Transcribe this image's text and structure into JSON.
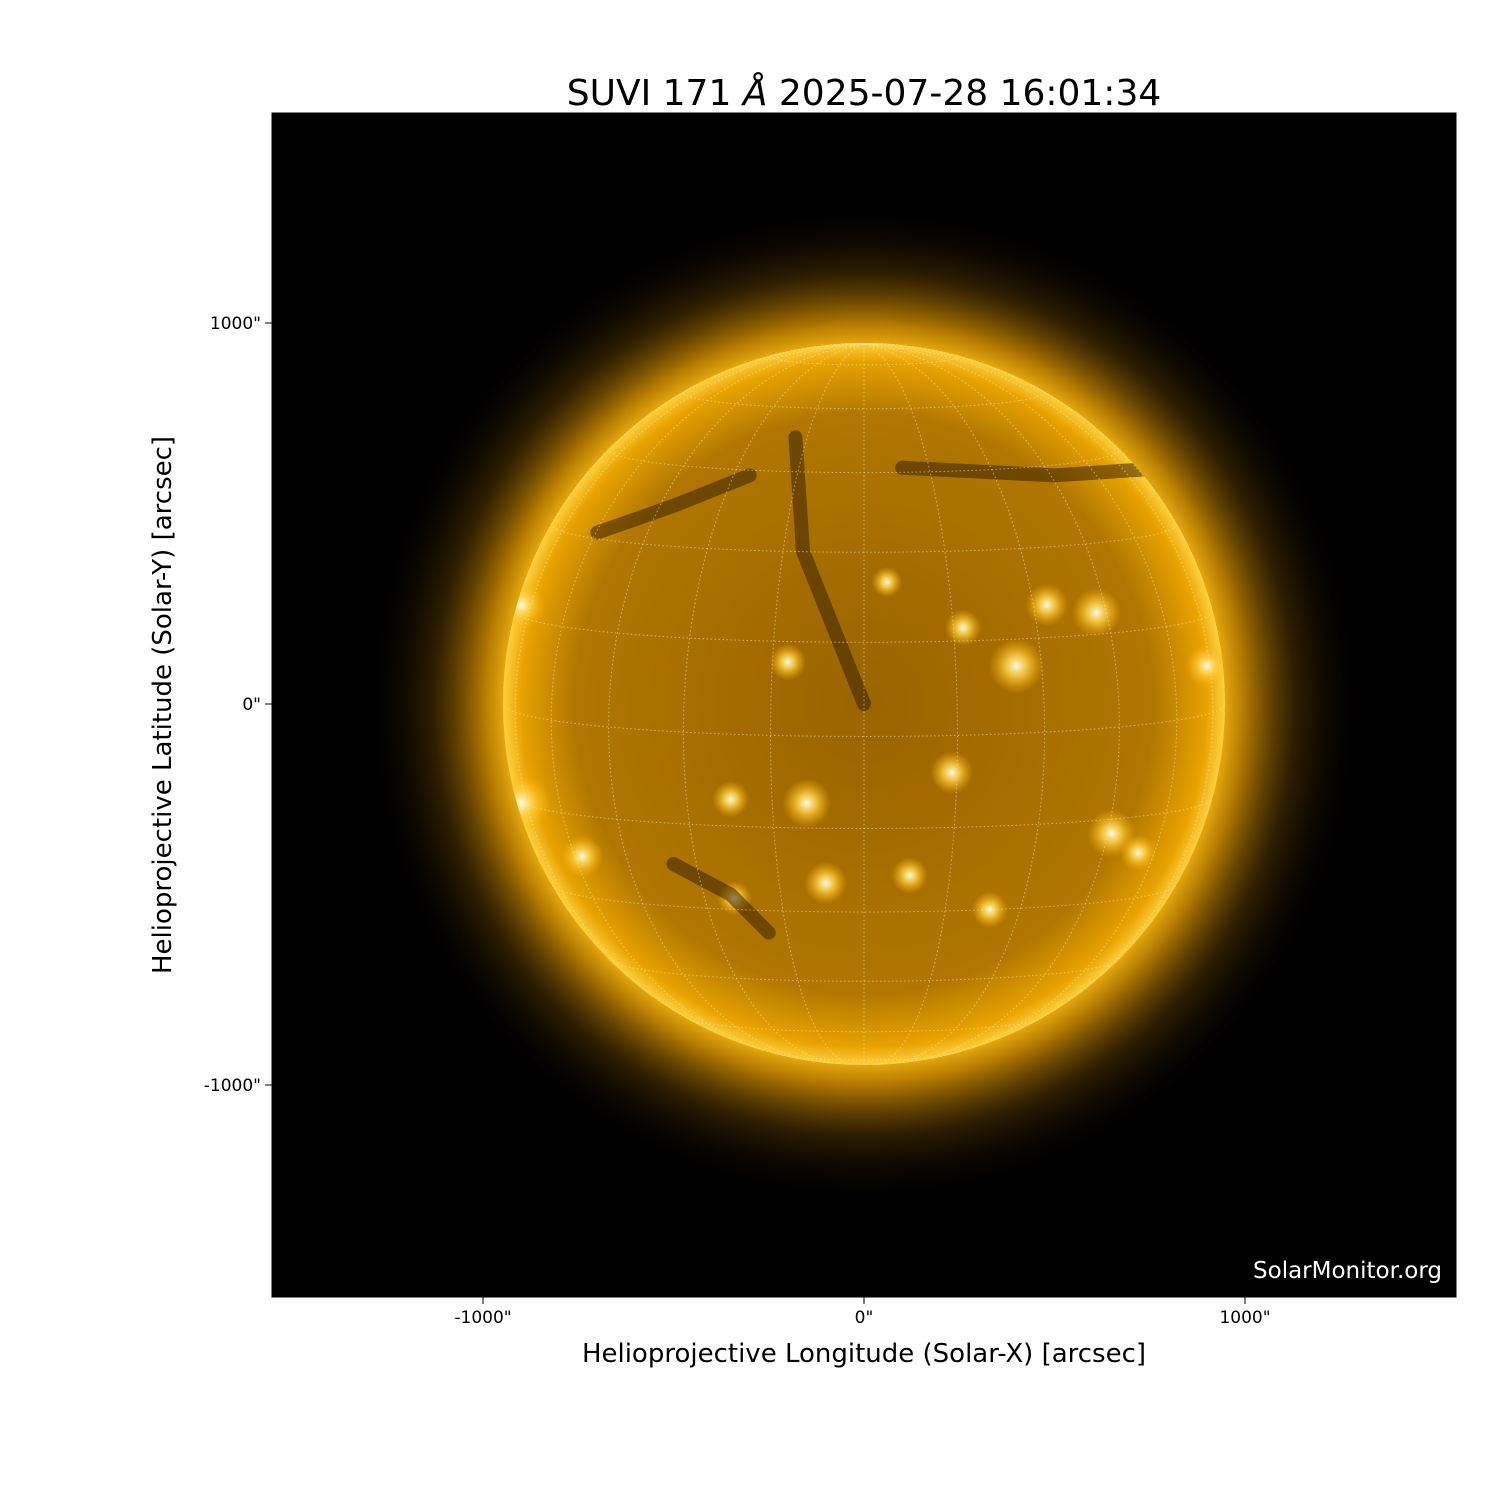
{
  "title": {
    "instrument": "SUVI 171",
    "unit": "Å",
    "datetime": "2025-07-28 16:01:34"
  },
  "xaxis": {
    "label": "Helioprojective Longitude (Solar-X) [arcsec]",
    "ticks": [
      {
        "value": -1000,
        "label": "-1000\""
      },
      {
        "value": 0,
        "label": "0\""
      },
      {
        "value": 1000,
        "label": "1000\""
      }
    ],
    "range": [
      -1550,
      1550
    ]
  },
  "yaxis": {
    "label": "Helioprojective Latitude (Solar-Y) [arcsec]",
    "ticks": [
      {
        "value": 1000,
        "label": "1000\""
      },
      {
        "value": 0,
        "label": "0\""
      },
      {
        "value": -1000,
        "label": "-1000\""
      }
    ],
    "range": [
      -1550,
      1550
    ]
  },
  "watermark": "SolarMonitor.org",
  "image": {
    "colormap": "goes-rsuvi171 (gold)",
    "solar_radius_arcsec": 948,
    "grid": "heliographic dotted, 15° spacing"
  },
  "colors": {
    "background": "#000000",
    "disk": "#c98a00",
    "bright": "#fff4c0",
    "corona": "#ffb000"
  }
}
